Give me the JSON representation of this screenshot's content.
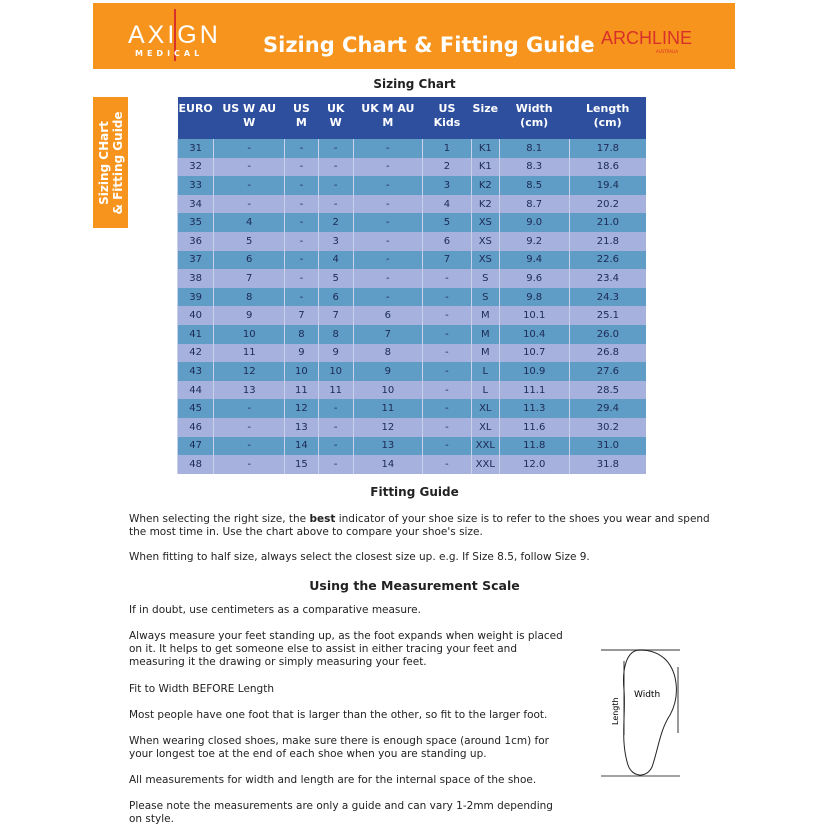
{
  "header": {
    "brand_left": "AXIGN",
    "brand_left_sub": "MEDICAL",
    "title": "Sizing Chart & Fitting Guide",
    "brand_right": "ARCHLINE",
    "brand_right_sub": "AUSTRALIA",
    "color": "#f7941d"
  },
  "side_tab": {
    "line1": "Sizing CHart",
    "line2": "& Fitting Guide"
  },
  "sizing_chart": {
    "heading": "Sizing Chart",
    "columns": [
      "EURO",
      "US W AU W",
      "US M",
      "UK W",
      "UK M AU M",
      "US Kids",
      "Size",
      "Width (cm)",
      "Length (cm)"
    ],
    "rows": [
      [
        "31",
        "-",
        "-",
        "-",
        "-",
        "1",
        "K1",
        "8.1",
        "17.8"
      ],
      [
        "32",
        "-",
        "-",
        "-",
        "-",
        "2",
        "K1",
        "8.3",
        "18.6"
      ],
      [
        "33",
        "-",
        "-",
        "-",
        "-",
        "3",
        "K2",
        "8.5",
        "19.4"
      ],
      [
        "34",
        "-",
        "-",
        "-",
        "-",
        "4",
        "K2",
        "8.7",
        "20.2"
      ],
      [
        "35",
        "4",
        "-",
        "2",
        "-",
        "5",
        "XS",
        "9.0",
        "21.0"
      ],
      [
        "36",
        "5",
        "-",
        "3",
        "-",
        "6",
        "XS",
        "9.2",
        "21.8"
      ],
      [
        "37",
        "6",
        "-",
        "4",
        "-",
        "7",
        "XS",
        "9.4",
        "22.6"
      ],
      [
        "38",
        "7",
        "-",
        "5",
        "-",
        "-",
        "S",
        "9.6",
        "23.4"
      ],
      [
        "39",
        "8",
        "-",
        "6",
        "-",
        "-",
        "S",
        "9.8",
        "24.3"
      ],
      [
        "40",
        "9",
        "7",
        "7",
        "6",
        "-",
        "M",
        "10.1",
        "25.1"
      ],
      [
        "41",
        "10",
        "8",
        "8",
        "7",
        "-",
        "M",
        "10.4",
        "26.0"
      ],
      [
        "42",
        "11",
        "9",
        "9",
        "8",
        "-",
        "M",
        "10.7",
        "26.8"
      ],
      [
        "43",
        "12",
        "10",
        "10",
        "9",
        "-",
        "L",
        "10.9",
        "27.6"
      ],
      [
        "44",
        "13",
        "11",
        "11",
        "10",
        "-",
        "L",
        "11.1",
        "28.5"
      ],
      [
        "45",
        "-",
        "12",
        "-",
        "11",
        "-",
        "XL",
        "11.3",
        "29.4"
      ],
      [
        "46",
        "-",
        "13",
        "-",
        "12",
        "-",
        "XL",
        "11.6",
        "30.2"
      ],
      [
        "47",
        "-",
        "14",
        "-",
        "13",
        "-",
        "XXL",
        "11.8",
        "31.0"
      ],
      [
        "48",
        "-",
        "15",
        "-",
        "14",
        "-",
        "XXL",
        "12.0",
        "31.8"
      ]
    ]
  },
  "fitting_guide": {
    "heading": "Fitting Guide",
    "p1_before": "When selecting the right size, the ",
    "p1_bold": "best",
    "p1_after": " indicator of your shoe size is to refer to the shoes you wear and spend the most time in. Use the chart above to compare your shoe's size.",
    "p2": "When fitting to half size, always select the closest size up. e.g. If Size 8.5, follow Size 9."
  },
  "measurement": {
    "heading": "Using the Measurement Scale",
    "paragraphs": [
      "If in doubt, use centimeters as a comparative measure.",
      "Always measure your feet standing up, as the foot expands when weight is placed on it. It helps to get someone else to assist in either tracing your feet and measuring it the drawing or simply measuring your feet.",
      "Fit to Width BEFORE Length",
      "Most people have one foot that is larger than the other, so fit to the larger foot.",
      "When wearing closed shoes, make sure there is enough space (around 1cm) for your longest toe at the end of each shoe when you are standing up.",
      "All measurements for width and length are for the internal space of the shoe.",
      "Please note the measurements are only a guide and can vary 1-2mm depending on style."
    ],
    "diagram": {
      "width_label": "Width",
      "length_label": "Length"
    }
  }
}
